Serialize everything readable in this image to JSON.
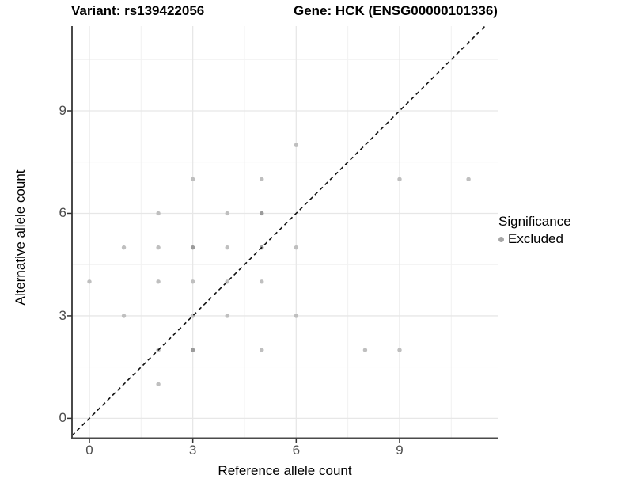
{
  "titles": {
    "variant": "Variant: rs139422056",
    "gene": "Gene: HCK (ENSG00000101336)"
  },
  "legend": {
    "title": "Significance",
    "items": [
      {
        "label": "Excluded",
        "color": "#a6a6a6"
      }
    ]
  },
  "chart_data": {
    "type": "scatter",
    "title": "Variant: rs139422056  /  Gene: HCK (ENSG00000101336)",
    "xlabel": "Reference allele count",
    "ylabel": "Alternative allele count",
    "xlim": [
      -0.505,
      11.87
    ],
    "ylim": [
      -0.582,
      11.48
    ],
    "x_major_ticks": [
      0,
      3,
      6,
      9
    ],
    "y_major_ticks": [
      0,
      3,
      6,
      9
    ],
    "x_minor_ticks": [
      1.5,
      4.5,
      7.5,
      10.5
    ],
    "y_minor_ticks": [
      1.5,
      4.5,
      7.5,
      10.5
    ],
    "grid": true,
    "legend_position": "right",
    "identity_line": {
      "equation": "y = x",
      "style": "dashed",
      "color": "#111111"
    },
    "series": [
      {
        "name": "Excluded",
        "point_color": "#bfbfbf",
        "overlap_point_color": "#9b9b9b",
        "points": [
          {
            "x": 0,
            "y": 4
          },
          {
            "x": 1,
            "y": 3
          },
          {
            "x": 1,
            "y": 5
          },
          {
            "x": 2,
            "y": 1
          },
          {
            "x": 2,
            "y": 2
          },
          {
            "x": 2,
            "y": 4
          },
          {
            "x": 2,
            "y": 5
          },
          {
            "x": 2,
            "y": 6
          },
          {
            "x": 3,
            "y": 2,
            "overlap": true
          },
          {
            "x": 3,
            "y": 3
          },
          {
            "x": 3,
            "y": 4
          },
          {
            "x": 3,
            "y": 5,
            "overlap": true
          },
          {
            "x": 3,
            "y": 7
          },
          {
            "x": 4,
            "y": 3
          },
          {
            "x": 4,
            "y": 4
          },
          {
            "x": 4,
            "y": 5
          },
          {
            "x": 4,
            "y": 6
          },
          {
            "x": 5,
            "y": 2
          },
          {
            "x": 5,
            "y": 4
          },
          {
            "x": 5,
            "y": 5,
            "overlap": true
          },
          {
            "x": 5,
            "y": 6,
            "overlap": true
          },
          {
            "x": 5,
            "y": 7
          },
          {
            "x": 6,
            "y": 3
          },
          {
            "x": 6,
            "y": 5
          },
          {
            "x": 6,
            "y": 8
          },
          {
            "x": 8,
            "y": 2
          },
          {
            "x": 9,
            "y": 2
          },
          {
            "x": 9,
            "y": 7
          },
          {
            "x": 11,
            "y": 7
          }
        ]
      }
    ]
  },
  "colors": {
    "background": "#ffffff",
    "major_grid": "#e7e7e7",
    "minor_grid": "#f1f1f1",
    "axis_line": "#4a4a4a",
    "tick_mark": "#333333",
    "tick_label": "#4d4d4d"
  }
}
